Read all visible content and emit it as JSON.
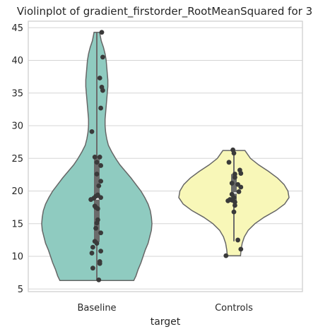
{
  "chart_data": {
    "type": "violin",
    "title": "Violinplot of gradient_firstorder_RootMeanSquared for 3",
    "xlabel": "target",
    "ylabel": "",
    "ylim": [
      4.6,
      46.0
    ],
    "yticks": [
      5,
      10,
      15,
      20,
      25,
      30,
      35,
      40,
      45
    ],
    "grid": true,
    "categories": [
      "Baseline",
      "Controls"
    ],
    "colors": [
      "#8fcbc0",
      "#f8f7b8"
    ],
    "series": [
      {
        "category": "Baseline",
        "density_y": [
          6.3,
          7,
          8,
          9,
          10,
          11,
          12,
          13,
          14,
          15,
          16,
          17,
          18,
          19,
          20,
          21,
          22,
          23,
          24,
          25,
          26,
          27,
          28,
          29,
          30,
          31,
          32,
          33,
          34,
          35,
          36,
          37,
          38,
          39,
          40,
          41,
          42,
          43,
          44.3
        ],
        "density_halfwidth": [
          0.67,
          0.71,
          0.75,
          0.8,
          0.84,
          0.88,
          0.93,
          0.96,
          0.99,
          1.0,
          0.99,
          0.97,
          0.93,
          0.87,
          0.8,
          0.71,
          0.62,
          0.52,
          0.42,
          0.34,
          0.27,
          0.21,
          0.18,
          0.16,
          0.15,
          0.15,
          0.16,
          0.17,
          0.18,
          0.19,
          0.2,
          0.2,
          0.19,
          0.18,
          0.17,
          0.15,
          0.12,
          0.08,
          0.05
        ],
        "box": {
          "q1": 12.2,
          "median": 18.8,
          "q3": 25.3,
          "whisker_low": 6.3,
          "whisker_high": 44.3
        },
        "points": [
          {
            "x": 0.05,
            "y": 44.3
          },
          {
            "x": 0.06,
            "y": 40.5
          },
          {
            "x": 0.03,
            "y": 37.3
          },
          {
            "x": 0.05,
            "y": 35.9
          },
          {
            "x": 0.06,
            "y": 35.4
          },
          {
            "x": 0.04,
            "y": 32.7
          },
          {
            "x": -0.05,
            "y": 29.1
          },
          {
            "x": 0.03,
            "y": 25.2
          },
          {
            "x": -0.02,
            "y": 25.2
          },
          {
            "x": 0.0,
            "y": 24.4
          },
          {
            "x": 0.04,
            "y": 23.9
          },
          {
            "x": 0.0,
            "y": 22.6
          },
          {
            "x": 0.04,
            "y": 21.5
          },
          {
            "x": 0.02,
            "y": 20.8
          },
          {
            "x": 0.01,
            "y": 19.4
          },
          {
            "x": -0.01,
            "y": 19.2
          },
          {
            "x": 0.04,
            "y": 19.0
          },
          {
            "x": -0.03,
            "y": 18.9
          },
          {
            "x": -0.06,
            "y": 18.7
          },
          {
            "x": -0.02,
            "y": 17.7
          },
          {
            "x": -0.01,
            "y": 17.5
          },
          {
            "x": 0.01,
            "y": 17.3
          },
          {
            "x": 0.01,
            "y": 15.6
          },
          {
            "x": 0.0,
            "y": 15.1
          },
          {
            "x": -0.01,
            "y": 14.3
          },
          {
            "x": 0.04,
            "y": 13.6
          },
          {
            "x": -0.02,
            "y": 12.3
          },
          {
            "x": 0.0,
            "y": 12.0
          },
          {
            "x": -0.04,
            "y": 11.4
          },
          {
            "x": 0.04,
            "y": 10.8
          },
          {
            "x": -0.05,
            "y": 10.5
          },
          {
            "x": 0.03,
            "y": 9.2
          },
          {
            "x": 0.03,
            "y": 8.9
          },
          {
            "x": -0.04,
            "y": 8.2
          },
          {
            "x": 0.02,
            "y": 6.4
          }
        ]
      },
      {
        "category": "Controls",
        "density_y": [
          10.1,
          11,
          12,
          13,
          14,
          15,
          16,
          17,
          18,
          19,
          20,
          21,
          22,
          23,
          24,
          25,
          26.2
        ],
        "density_halfwidth": [
          0.12,
          0.13,
          0.15,
          0.19,
          0.26,
          0.38,
          0.55,
          0.76,
          0.92,
          1.0,
          0.98,
          0.91,
          0.79,
          0.63,
          0.45,
          0.3,
          0.2
        ],
        "box": {
          "q1": 18.4,
          "median": 19.7,
          "q3": 22.6,
          "whisker_low": 12.3,
          "whisker_high": 26.2
        },
        "points": [
          {
            "x": -0.01,
            "y": 26.3
          },
          {
            "x": 0.0,
            "y": 25.8
          },
          {
            "x": -0.05,
            "y": 24.4
          },
          {
            "x": 0.06,
            "y": 23.2
          },
          {
            "x": 0.07,
            "y": 22.7
          },
          {
            "x": 0.01,
            "y": 22.6
          },
          {
            "x": 0.01,
            "y": 22.1
          },
          {
            "x": -0.02,
            "y": 21.2
          },
          {
            "x": 0.04,
            "y": 21.0
          },
          {
            "x": 0.07,
            "y": 20.6
          },
          {
            "x": 0.05,
            "y": 19.9
          },
          {
            "x": -0.02,
            "y": 19.5
          },
          {
            "x": 0.0,
            "y": 19.0
          },
          {
            "x": -0.04,
            "y": 18.7
          },
          {
            "x": -0.02,
            "y": 18.6
          },
          {
            "x": -0.06,
            "y": 18.5
          },
          {
            "x": 0.01,
            "y": 18.3
          },
          {
            "x": 0.01,
            "y": 17.8
          },
          {
            "x": 0.0,
            "y": 16.8
          },
          {
            "x": 0.04,
            "y": 12.5
          },
          {
            "x": 0.07,
            "y": 11.1
          },
          {
            "x": -0.08,
            "y": 10.1
          }
        ]
      }
    ]
  }
}
